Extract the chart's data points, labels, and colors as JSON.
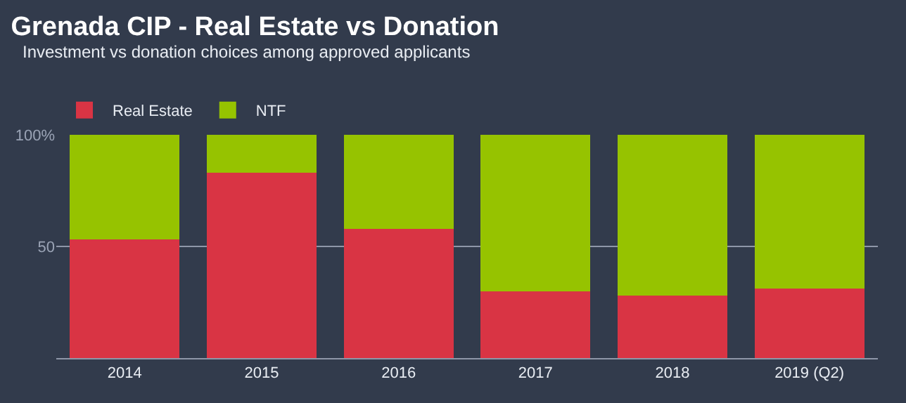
{
  "chart_data": {
    "type": "bar",
    "title": "Grenada CIP - Real Estate vs Donation",
    "subtitle": "Investment vs donation choices among approved applicants",
    "categories": [
      "2014",
      "2015",
      "2016",
      "2017",
      "2018",
      "2019 (Q2)"
    ],
    "series": [
      {
        "name": "Real Estate",
        "color": "#d93444",
        "values": [
          53,
          83,
          58,
          30,
          28,
          31
        ]
      },
      {
        "name": "NTF",
        "color": "#96c300",
        "values": [
          47,
          17,
          42,
          70,
          72,
          69
        ]
      }
    ],
    "stacked": true,
    "ylim": [
      0,
      100
    ],
    "yticks": [
      {
        "value": 0,
        "label": null
      },
      50,
      {
        "value": 100,
        "label": "100%"
      }
    ],
    "grid": "y",
    "legend": "top left"
  }
}
